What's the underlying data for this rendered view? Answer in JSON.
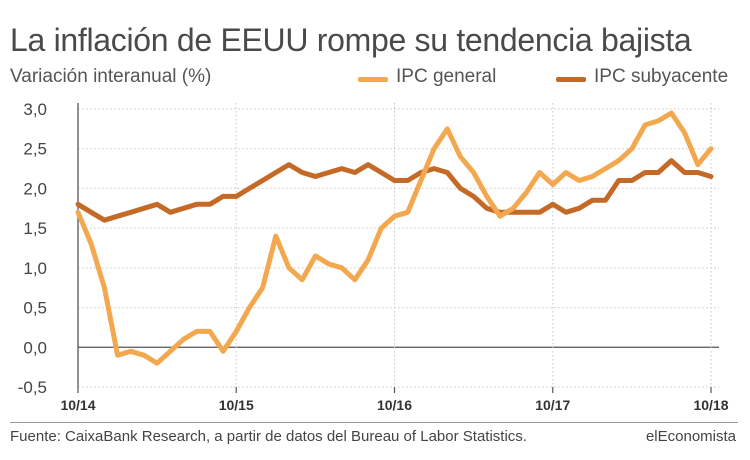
{
  "colors": {
    "general": "#F3A84F",
    "core": "#C56A26",
    "grid": "#C8C8C8",
    "zeroline": "#555555"
  },
  "header": {
    "title": "La inflación de EEUU rompe su tendencia bajista",
    "subtitle": "Variación interanual (%)"
  },
  "footer": {
    "source": "Fuente: CaixaBank Research, a partir de datos del Bureau of Labor Statistics.",
    "brand": "elEconomista"
  },
  "chart_data": {
    "type": "line",
    "title": "La inflación de EEUU rompe su tendencia bajista",
    "ylabel": "Variación interanual (%)",
    "xlabel": "",
    "ylim": [
      -0.5,
      3.0
    ],
    "y_ticks": [
      -0.5,
      0.0,
      0.5,
      1.0,
      1.5,
      2.0,
      2.5,
      3.0
    ],
    "y_tick_labels": [
      "-0,5",
      "0,0",
      "0,5",
      "1,0",
      "1,5",
      "2,0",
      "2,5",
      "3,0"
    ],
    "x_tick_labels": [
      "10/14",
      "10/15",
      "10/16",
      "10/17",
      "10/18"
    ],
    "x_tick_index": [
      0,
      12,
      24,
      36,
      48
    ],
    "x": [
      "10/14",
      "11/14",
      "12/14",
      "01/15",
      "02/15",
      "03/15",
      "04/15",
      "05/15",
      "06/15",
      "07/15",
      "08/15",
      "09/15",
      "10/15",
      "11/15",
      "12/15",
      "01/16",
      "02/16",
      "03/16",
      "04/16",
      "05/16",
      "06/16",
      "07/16",
      "08/16",
      "09/16",
      "10/16",
      "11/16",
      "12/16",
      "01/17",
      "02/17",
      "03/17",
      "04/17",
      "05/17",
      "06/17",
      "07/17",
      "08/17",
      "09/17",
      "10/17",
      "11/17",
      "12/17",
      "01/18",
      "02/18",
      "03/18",
      "04/18",
      "05/18",
      "06/18",
      "07/18",
      "08/18",
      "09/18",
      "10/18"
    ],
    "grid": true,
    "legend_position": "top-right",
    "series": [
      {
        "name": "IPC general",
        "values": [
          1.7,
          1.3,
          0.75,
          -0.1,
          -0.05,
          -0.1,
          -0.2,
          -0.05,
          0.1,
          0.2,
          0.2,
          -0.05,
          0.2,
          0.5,
          0.75,
          1.4,
          1.0,
          0.85,
          1.15,
          1.05,
          1.0,
          0.85,
          1.1,
          1.5,
          1.65,
          1.7,
          2.1,
          2.5,
          2.75,
          2.4,
          2.2,
          1.9,
          1.65,
          1.75,
          1.95,
          2.2,
          2.05,
          2.2,
          2.1,
          2.15,
          2.25,
          2.35,
          2.5,
          2.8,
          2.85,
          2.95,
          2.7,
          2.3,
          2.5
        ]
      },
      {
        "name": "IPC subyacente",
        "values": [
          1.8,
          1.7,
          1.6,
          1.65,
          1.7,
          1.75,
          1.8,
          1.7,
          1.75,
          1.8,
          1.8,
          1.9,
          1.9,
          2.0,
          2.1,
          2.2,
          2.3,
          2.2,
          2.15,
          2.2,
          2.25,
          2.2,
          2.3,
          2.2,
          2.1,
          2.1,
          2.2,
          2.25,
          2.2,
          2.0,
          1.9,
          1.75,
          1.7,
          1.7,
          1.7,
          1.7,
          1.8,
          1.7,
          1.75,
          1.85,
          1.85,
          2.1,
          2.1,
          2.2,
          2.2,
          2.35,
          2.2,
          2.2,
          2.15
        ]
      }
    ]
  }
}
